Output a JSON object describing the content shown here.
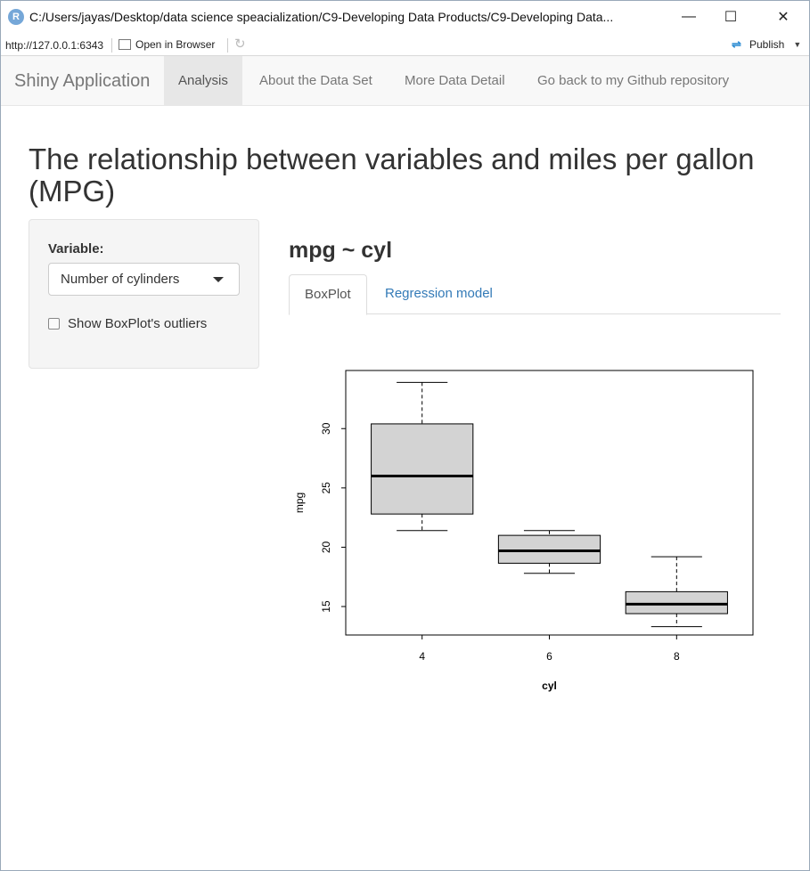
{
  "window": {
    "title": "C:/Users/jayas/Desktop/data science speacialization/C9-Developing Data Products/C9-Developing Data...",
    "minimize": "—",
    "maximize": "☐",
    "close": "✕"
  },
  "viewer": {
    "url": "http://127.0.0.1:6343",
    "open_in_browser": "Open in Browser",
    "publish": "Publish"
  },
  "navbar": {
    "brand": "Shiny Application",
    "tabs": [
      {
        "label": "Analysis"
      },
      {
        "label": "About the Data Set"
      },
      {
        "label": "More Data Detail"
      },
      {
        "label": "Go back to my Github repository"
      }
    ],
    "active_tab": "Analysis"
  },
  "page": {
    "title": "The relationship between variables and miles per gallon (MPG)"
  },
  "sidebar": {
    "variable_label": "Variable:",
    "variable_selected": "Number of cylinders",
    "outliers_label": "Show BoxPlot's outliers",
    "outliers_checked": false
  },
  "main": {
    "heading": "mpg ~ cyl",
    "tabs": [
      {
        "label": "BoxPlot"
      },
      {
        "label": "Regression model"
      }
    ],
    "active_tab": "BoxPlot"
  },
  "chart_data": {
    "type": "boxplot",
    "xlabel": "cyl",
    "ylabel": "mpg",
    "categories": [
      "4",
      "6",
      "8"
    ],
    "y_ticks": [
      15,
      20,
      25,
      30
    ],
    "ylim": [
      12.6,
      34.9
    ],
    "grid": false,
    "box_fill": "#d3d3d3",
    "boxes": [
      {
        "category": "4",
        "min": 21.4,
        "q1": 22.8,
        "median": 26.0,
        "q3": 30.4,
        "max": 33.9
      },
      {
        "category": "6",
        "min": 17.8,
        "q1": 18.65,
        "median": 19.7,
        "q3": 21.0,
        "max": 21.4
      },
      {
        "category": "8",
        "min": 13.3,
        "q1": 14.4,
        "median": 15.2,
        "q3": 16.25,
        "max": 19.2
      }
    ]
  }
}
